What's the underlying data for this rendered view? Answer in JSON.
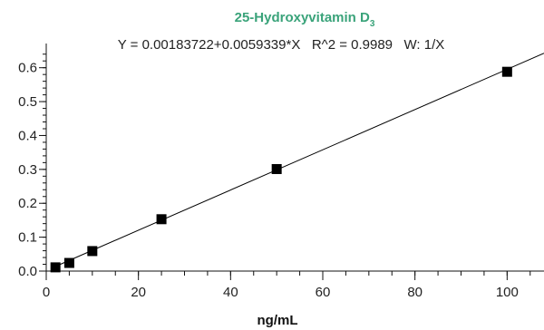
{
  "chart_data": {
    "type": "scatter",
    "title_main": "25-Hydroxyvitamin D",
    "title_subscript": "3",
    "subtitle": "Y = 0.00183722+0.0059339*X   R^2 = 0.9989   W: 1/X",
    "xlabel": "ng/mL",
    "ylabel": "",
    "xlim": [
      0,
      108
    ],
    "ylim": [
      0,
      0.65
    ],
    "x_ticks": [
      0,
      20,
      40,
      60,
      80,
      100
    ],
    "x_tick_labels": [
      "0",
      "20",
      "40",
      "60",
      "80",
      "100"
    ],
    "y_ticks": [
      0.0,
      0.1,
      0.2,
      0.3,
      0.4,
      0.5,
      0.6
    ],
    "y_tick_labels": [
      "0.0",
      "0.1",
      "0.2",
      "0.3",
      "0.4",
      "0.5",
      "0.6"
    ],
    "grid": false,
    "points": [
      {
        "x": 2,
        "y": 0.011
      },
      {
        "x": 5,
        "y": 0.024
      },
      {
        "x": 10,
        "y": 0.059
      },
      {
        "x": 25,
        "y": 0.153
      },
      {
        "x": 50,
        "y": 0.301
      },
      {
        "x": 100,
        "y": 0.588
      }
    ],
    "fit": {
      "intercept": 0.00183722,
      "slope": 0.0059339
    },
    "colors": {
      "title": "#3aa37a",
      "axis": "#111111",
      "marker": "#000000",
      "line": "#000000"
    }
  }
}
